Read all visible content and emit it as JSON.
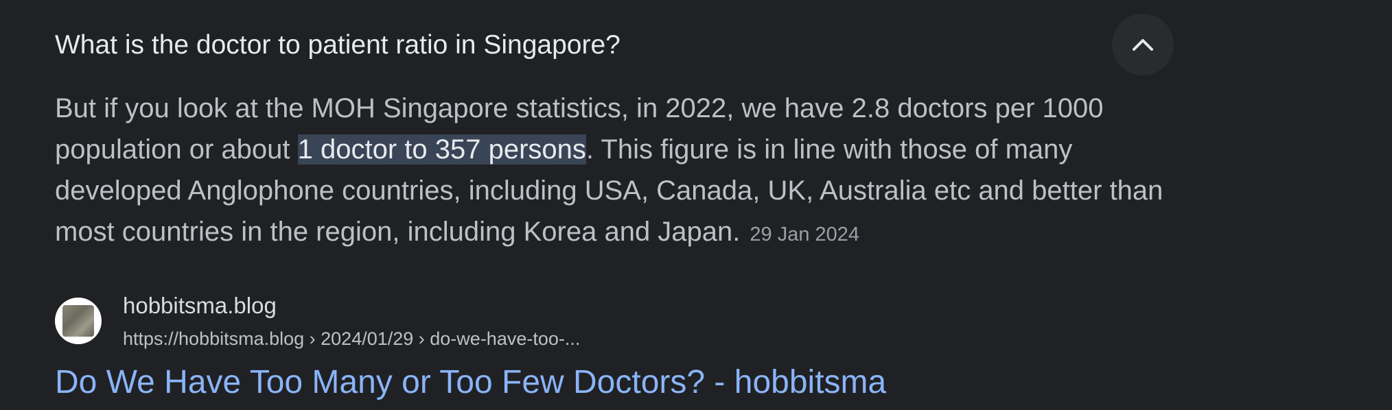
{
  "question": "What is the doctor to patient ratio in Singapore?",
  "collapse_icon": "chevron-up-icon",
  "answer": {
    "before": "But if you look at the MOH Singapore statistics, in 2022, we have 2.8 doctors per 1000 population or about ",
    "highlight": "1 doctor to 357 persons",
    "after": ". This figure is in line with those of many developed Anglophone countries, including USA, Canada, UK, Australia etc and better than most countries in the region, including Korea and Japan.",
    "date": "29 Jan 2024"
  },
  "source": {
    "site_name": "hobbitsma.blog",
    "url": "https://hobbitsma.blog › 2024/01/29 › do-we-have-too-..."
  },
  "result_title": "Do We Have Too Many or Too Few Doctors? - hobbitsma",
  "colors": {
    "background": "#202124",
    "link": "#8ab4f8",
    "highlight": "#394457"
  }
}
